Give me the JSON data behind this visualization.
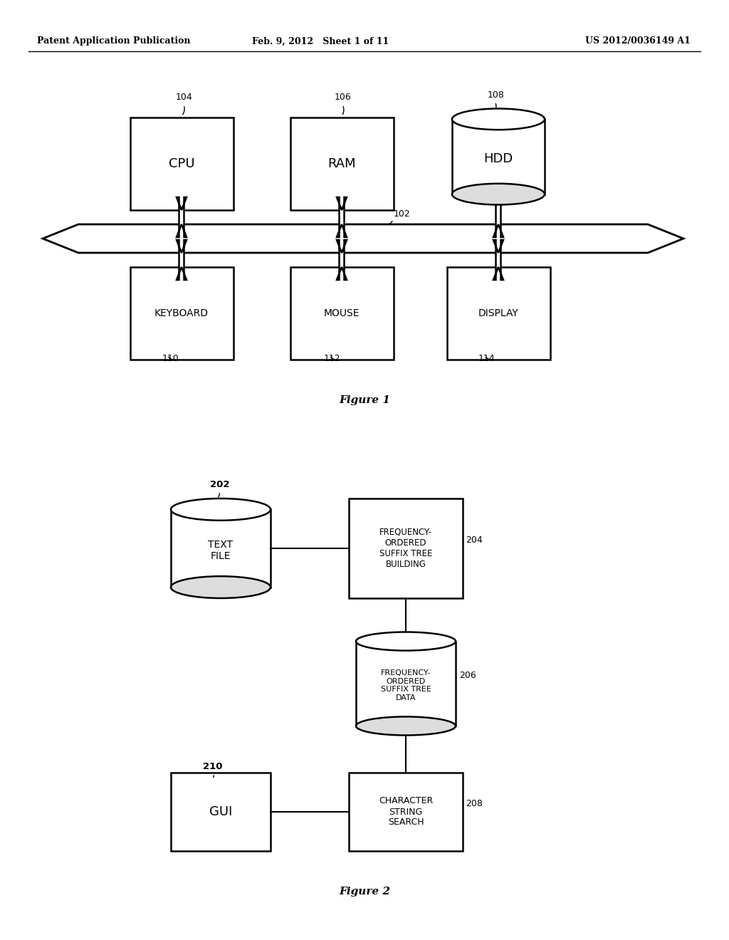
{
  "header_left": "Patent Application Publication",
  "header_mid": "Feb. 9, 2012   Sheet 1 of 11",
  "header_right": "US 2012/0036149 A1",
  "fig1_label": "Figure 1",
  "fig2_label": "Figure 2",
  "background_color": "#ffffff",
  "line_color": "#000000"
}
